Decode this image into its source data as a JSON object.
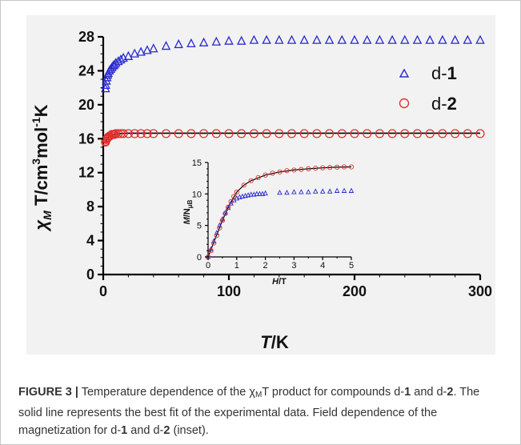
{
  "chart_data": [
    {
      "type": "scatter",
      "ylabel": "χMT/cm3mol-1K",
      "xlabel": "T/K",
      "xlim": [
        0,
        300
      ],
      "ylim": [
        0,
        28
      ],
      "xticks": [
        "0",
        "100",
        "200",
        "300"
      ],
      "yticks": [
        "0",
        "4",
        "8",
        "12",
        "16",
        "20",
        "24",
        "28"
      ],
      "legend": {
        "placement": "top-right",
        "entries": [
          {
            "marker": "Δ",
            "label": "d-1"
          },
          {
            "marker": "○",
            "label": "d-2"
          }
        ]
      },
      "colors": {
        "d1": "#2a2ad0",
        "d2": "#e23030",
        "fit": "#000000"
      },
      "series": [
        {
          "name": "d-1",
          "marker": "triangle",
          "x": [
            1.8,
            2,
            2.5,
            3,
            3.5,
            4,
            5,
            6,
            7,
            8,
            9,
            10,
            12,
            14,
            16,
            20,
            25,
            30,
            35,
            40,
            50,
            60,
            70,
            80,
            90,
            100,
            110,
            120,
            130,
            140,
            150,
            160,
            170,
            180,
            190,
            200,
            210,
            220,
            230,
            240,
            250,
            260,
            270,
            280,
            290,
            300
          ],
          "y": [
            21.9,
            22.3,
            22.8,
            23.2,
            23.5,
            23.7,
            24.0,
            24.2,
            24.4,
            24.6,
            24.7,
            24.9,
            25.1,
            25.3,
            25.5,
            25.7,
            26.0,
            26.2,
            26.4,
            26.6,
            26.9,
            27.1,
            27.2,
            27.3,
            27.4,
            27.5,
            27.5,
            27.6,
            27.6,
            27.6,
            27.6,
            27.6,
            27.6,
            27.6,
            27.6,
            27.6,
            27.6,
            27.6,
            27.6,
            27.6,
            27.6,
            27.6,
            27.6,
            27.6,
            27.6,
            27.6
          ]
        },
        {
          "name": "d-2",
          "marker": "circle",
          "x": [
            1.8,
            2,
            2.5,
            3,
            3.5,
            4,
            5,
            6,
            7,
            8,
            9,
            10,
            12,
            14,
            16,
            20,
            25,
            30,
            35,
            40,
            50,
            60,
            70,
            80,
            90,
            100,
            110,
            120,
            130,
            140,
            150,
            160,
            170,
            180,
            190,
            200,
            210,
            220,
            230,
            240,
            250,
            260,
            270,
            280,
            290,
            300
          ],
          "y": [
            15.6,
            15.7,
            15.9,
            16.0,
            16.1,
            16.2,
            16.3,
            16.4,
            16.5,
            16.5,
            16.5,
            16.6,
            16.6,
            16.6,
            16.6,
            16.6,
            16.6,
            16.6,
            16.6,
            16.6,
            16.6,
            16.6,
            16.6,
            16.6,
            16.6,
            16.6,
            16.6,
            16.6,
            16.6,
            16.6,
            16.6,
            16.6,
            16.6,
            16.6,
            16.6,
            16.6,
            16.6,
            16.6,
            16.6,
            16.6,
            16.6,
            16.6,
            16.6,
            16.6,
            16.6,
            16.6
          ]
        },
        {
          "name": "fit",
          "marker": "line",
          "x": [
            1.8,
            3,
            5,
            8,
            12,
            20,
            40,
            100,
            300
          ],
          "y": [
            15.5,
            16.0,
            16.3,
            16.5,
            16.6,
            16.65,
            16.65,
            16.65,
            16.65
          ]
        }
      ]
    },
    {
      "type": "scatter",
      "ylabel": "M/NμB",
      "xlabel": "H/T",
      "xlim": [
        0,
        5
      ],
      "ylim": [
        0,
        15
      ],
      "xticks": [
        "0",
        "1",
        "2",
        "3",
        "4",
        "5"
      ],
      "yticks": [
        "0",
        "5",
        "10",
        "15"
      ],
      "series": [
        {
          "name": "d-1",
          "marker": "triangle",
          "x": [
            0,
            0.1,
            0.2,
            0.3,
            0.4,
            0.5,
            0.6,
            0.7,
            0.8,
            0.9,
            1.0,
            1.1,
            1.2,
            1.3,
            1.4,
            1.5,
            1.6,
            1.7,
            1.8,
            1.9,
            2.0,
            2.5,
            2.75,
            3.0,
            3.25,
            3.5,
            3.75,
            4.0,
            4.25,
            4.5,
            4.75,
            5.0
          ],
          "y": [
            0.0,
            1.2,
            2.5,
            3.8,
            5.0,
            6.0,
            7.0,
            7.8,
            8.5,
            9.0,
            9.3,
            9.5,
            9.6,
            9.7,
            9.8,
            9.9,
            9.9,
            10.0,
            10.0,
            10.0,
            10.1,
            10.2,
            10.2,
            10.3,
            10.3,
            10.3,
            10.4,
            10.4,
            10.4,
            10.5,
            10.5,
            10.5
          ]
        },
        {
          "name": "d-2",
          "marker": "circle",
          "x": [
            0,
            0.1,
            0.2,
            0.3,
            0.4,
            0.5,
            0.6,
            0.7,
            0.8,
            0.9,
            1.0,
            1.25,
            1.5,
            1.75,
            2.0,
            2.25,
            2.5,
            2.75,
            3.0,
            3.25,
            3.5,
            3.75,
            4.0,
            4.25,
            4.5,
            4.75,
            5.0
          ],
          "y": [
            0.0,
            1.0,
            2.2,
            3.4,
            4.6,
            5.8,
            6.9,
            7.9,
            8.8,
            9.6,
            10.3,
            11.4,
            12.1,
            12.6,
            13.0,
            13.3,
            13.5,
            13.7,
            13.8,
            13.9,
            14.0,
            14.1,
            14.15,
            14.2,
            14.25,
            14.3,
            14.3
          ]
        },
        {
          "name": "fit",
          "marker": "line",
          "x": [
            0,
            0.25,
            0.5,
            0.75,
            1.0,
            1.25,
            1.5,
            2.0,
            2.5,
            3.0,
            3.5,
            4.0,
            4.5,
            5.0
          ],
          "y": [
            0.0,
            2.9,
            5.8,
            8.3,
            10.3,
            11.4,
            12.1,
            13.0,
            13.5,
            13.8,
            14.0,
            14.15,
            14.25,
            14.3
          ]
        }
      ]
    }
  ],
  "legend": {
    "d1_prefix": "d-",
    "d1_bold": "1",
    "d2_prefix": "d-",
    "d2_bold": "2"
  },
  "axis_titles": {
    "y_chi": "χ",
    "y_sub": "M",
    "y_main": " T/cm",
    "y_sup3": "3",
    "y_mol": "mol",
    "y_sup_neg1": "-1",
    "y_K": "K",
    "x_T": "T",
    "x_rest": "/K",
    "inset_y_M": "M",
    "inset_y_rest": "/N",
    "inset_y_sub": "μB",
    "inset_x_H": "H",
    "inset_x_rest": "/T"
  },
  "caption": {
    "label": "FIGURE 3 |",
    "t1": " Temperature dependence of the ",
    "chi": "χ",
    "sub_M": "M",
    "t2": "T product for compounds d-",
    "b1": "1",
    "t3": " and d-",
    "b2": "2",
    "t4": ". The solid line represents the best fit of the experimental data. Field dependence of the magnetization for d-",
    "b3": "1",
    "t5": " and d-",
    "b4": "2",
    "t6": " (inset)."
  }
}
